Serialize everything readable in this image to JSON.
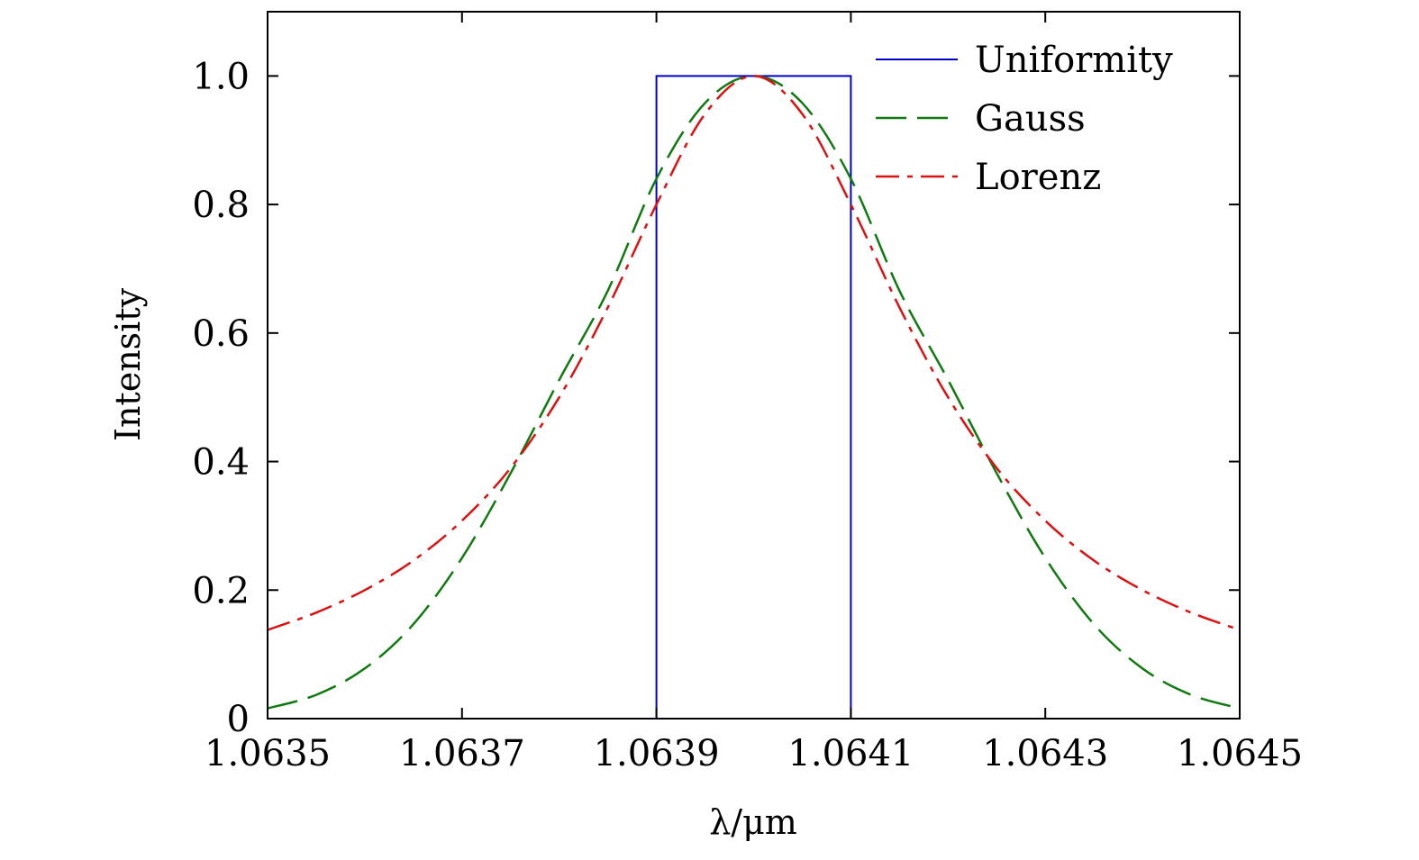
{
  "chart_data": {
    "type": "line",
    "title": "",
    "xlabel": "λ/μm",
    "ylabel": "Intensity",
    "xlim": [
      1.0635,
      1.0645
    ],
    "ylim": [
      0,
      1.1
    ],
    "x_ticks": [
      1.0635,
      1.0637,
      1.0639,
      1.0641,
      1.0643,
      1.0645
    ],
    "x_tick_labels": [
      "1.0635",
      "1.0637",
      "1.0639",
      "1.0641",
      "1.0643",
      "1.0645"
    ],
    "y_ticks": [
      0,
      0.2,
      0.4,
      0.6,
      0.8,
      1.0
    ],
    "y_tick_labels": [
      "0",
      "0.2",
      "0.4",
      "0.6",
      "0.8",
      "1.0"
    ],
    "grid": false,
    "legend_position": "top-right",
    "series": [
      {
        "name": "Uniformity",
        "color": "#0000cc",
        "style": "solid",
        "x": [
          1.0635,
          1.0639,
          1.0639,
          1.0641,
          1.0641,
          1.0645
        ],
        "y": [
          0,
          0,
          1.0,
          1.0,
          0,
          0
        ]
      },
      {
        "name": "Gauss",
        "color": "#107a10",
        "style": "dashed",
        "x": [
          1.0635,
          1.06355,
          1.0636,
          1.06365,
          1.0637,
          1.06375,
          1.0638,
          1.06385,
          1.0639,
          1.06395,
          1.064,
          1.06405,
          1.0641,
          1.06415,
          1.0642,
          1.06425,
          1.0643,
          1.06435,
          1.0644,
          1.06445,
          1.0645
        ],
        "y": [
          0.016,
          0.037,
          0.078,
          0.147,
          0.25,
          0.382,
          0.527,
          0.666,
          0.84,
          0.958,
          1.0,
          0.958,
          0.84,
          0.666,
          0.527,
          0.382,
          0.25,
          0.147,
          0.078,
          0.037,
          0.016
        ]
      },
      {
        "name": "Lorenz",
        "color": "#dd1111",
        "style": "dashdot",
        "x": [
          1.0635,
          1.06355,
          1.0636,
          1.06365,
          1.0637,
          1.06375,
          1.0638,
          1.06385,
          1.0639,
          1.06395,
          1.064,
          1.06405,
          1.0641,
          1.06415,
          1.0642,
          1.06425,
          1.0643,
          1.06435,
          1.0644,
          1.06445,
          1.0645
        ],
        "y": [
          0.138,
          0.165,
          0.2,
          0.246,
          0.308,
          0.39,
          0.5,
          0.64,
          0.8,
          0.941,
          1.0,
          0.941,
          0.8,
          0.64,
          0.5,
          0.39,
          0.308,
          0.246,
          0.2,
          0.165,
          0.138
        ]
      }
    ]
  }
}
